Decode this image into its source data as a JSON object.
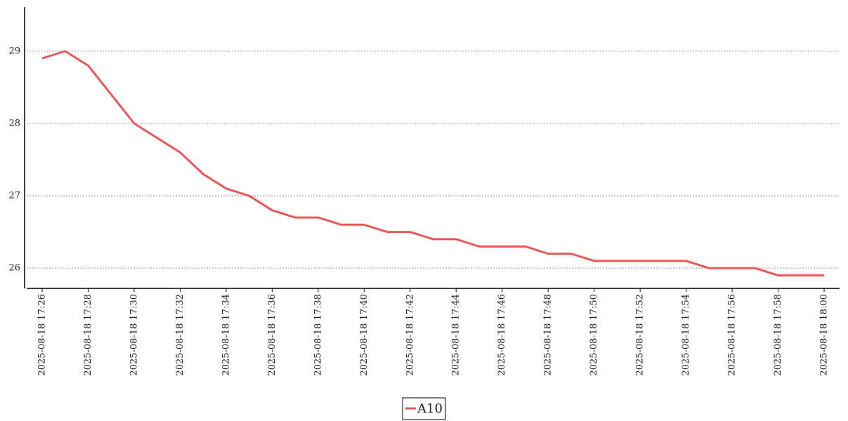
{
  "chart_data": {
    "type": "line",
    "x": [
      "2025-08-18 17:26",
      null,
      "2025-08-18 17:28",
      null,
      "2025-08-18 17:30",
      null,
      "2025-08-18 17:32",
      null,
      "2025-08-18 17:34",
      null,
      "2025-08-18 17:36",
      null,
      "2025-08-18 17:38",
      null,
      "2025-08-18 17:40",
      null,
      "2025-08-18 17:42",
      null,
      "2025-08-18 17:44",
      null,
      "2025-08-18 17:46",
      null,
      "2025-08-18 17:48",
      null,
      "2025-08-18 17:50",
      null,
      "2025-08-18 17:52",
      null,
      "2025-08-18 17:54",
      null,
      "2025-08-18 17:56",
      null,
      "2025-08-18 17:58",
      null,
      "2025-08-18 18:00"
    ],
    "series": [
      {
        "name": "A10",
        "color": "#eb5757",
        "values": [
          28.9,
          29.0,
          28.8,
          28.4,
          28.0,
          27.8,
          27.6,
          27.3,
          27.1,
          27.0,
          26.8,
          26.7,
          26.7,
          26.6,
          26.6,
          26.5,
          26.5,
          26.4,
          26.4,
          26.3,
          26.3,
          26.3,
          26.2,
          26.2,
          26.1,
          26.1,
          26.1,
          26.1,
          26.1,
          26.0,
          26.0,
          26.0,
          25.9,
          25.9,
          25.9
        ]
      }
    ],
    "ylim": [
      25.72,
      29.61
    ],
    "yticks": [
      26,
      27,
      28,
      29
    ],
    "grid": true
  }
}
